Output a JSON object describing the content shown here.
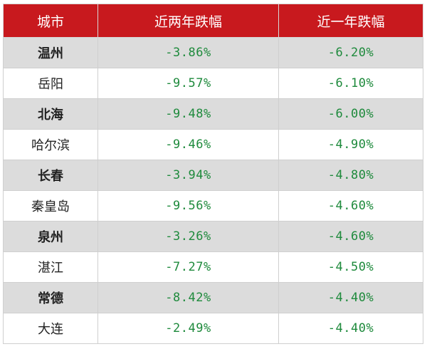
{
  "table": {
    "headers": [
      "城市",
      "近两年跌幅",
      "近一年跌幅"
    ],
    "rows": [
      [
        "温州",
        "-3.86%",
        "-6.20%"
      ],
      [
        "岳阳",
        "-9.57%",
        "-6.10%"
      ],
      [
        "北海",
        "-9.48%",
        "-6.00%"
      ],
      [
        "哈尔滨",
        "-9.46%",
        "-4.90%"
      ],
      [
        "长春",
        "-3.94%",
        "-4.80%"
      ],
      [
        "秦皇岛",
        "-9.56%",
        "-4.60%"
      ],
      [
        "泉州",
        "-3.26%",
        "-4.60%"
      ],
      [
        "湛江",
        "-7.27%",
        "-4.50%"
      ],
      [
        "常德",
        "-8.42%",
        "-4.40%"
      ],
      [
        "大连",
        "-2.49%",
        "-4.40%"
      ]
    ]
  },
  "colors": {
    "header_bg": "#c8191e",
    "header_text": "#ffffff",
    "value_text": "#1e8a3c",
    "shaded_row_bg": "#dcdcdc"
  }
}
